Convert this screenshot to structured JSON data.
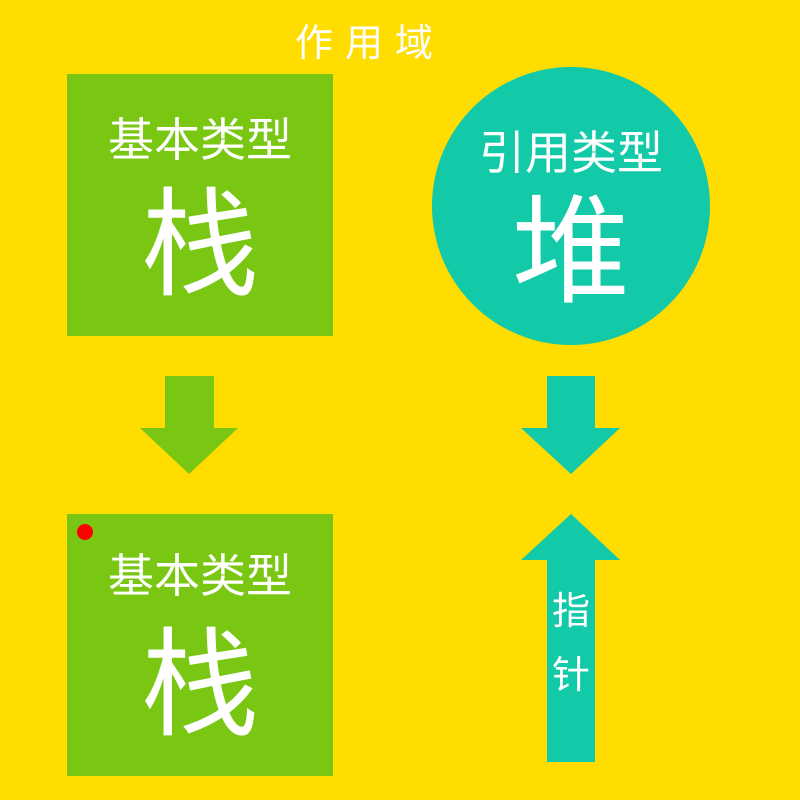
{
  "title": "作用域",
  "top_left": {
    "label": "基本类型",
    "char": "栈"
  },
  "top_right": {
    "label": "引用类型",
    "char": "堆"
  },
  "bottom_left": {
    "label": "基本类型",
    "char": "栈"
  },
  "pointer": {
    "char1": "指",
    "char2": "针"
  },
  "colors": {
    "background": "#FFDD00",
    "green": "#79C712",
    "teal": "#12C9A8",
    "marker": "#FF0000",
    "text": "#FFFFFF"
  }
}
